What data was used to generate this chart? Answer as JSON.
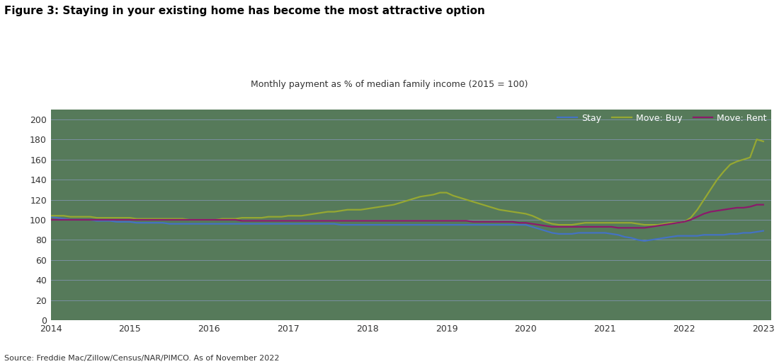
{
  "title": "Figure 3: Staying in your existing home has become the most attractive option",
  "subtitle": "Monthly payment as % of median family income (2015 = 100)",
  "source": "Source: Freddie Mac/Zillow/Census/NAR/PIMCO. As of November 2022",
  "legend_labels": [
    "Stay",
    "Move: Buy",
    "Move: Rent"
  ],
  "line_colors": [
    "#4472c4",
    "#96a832",
    "#8b1a6b"
  ],
  "figure_bg_color": "#ffffff",
  "plot_bg_color": "#567a5a",
  "grid_color": "#7a8fa0",
  "title_color": "#000000",
  "subtitle_color": "#333333",
  "tick_color": "#333333",
  "source_color": "#333333",
  "legend_text_color": "#ffffff",
  "ylim": [
    0,
    210
  ],
  "yticks": [
    0,
    20,
    40,
    60,
    80,
    100,
    120,
    140,
    160,
    180,
    200
  ],
  "xticks": [
    2014,
    2015,
    2016,
    2017,
    2018,
    2019,
    2020,
    2021,
    2022,
    2023
  ],
  "xmin": 2014.0,
  "xmax": 2023.1,
  "dates": [
    2014.0,
    2014.083,
    2014.167,
    2014.25,
    2014.333,
    2014.417,
    2014.5,
    2014.583,
    2014.667,
    2014.75,
    2014.833,
    2014.917,
    2015.0,
    2015.083,
    2015.167,
    2015.25,
    2015.333,
    2015.417,
    2015.5,
    2015.583,
    2015.667,
    2015.75,
    2015.833,
    2015.917,
    2016.0,
    2016.083,
    2016.167,
    2016.25,
    2016.333,
    2016.417,
    2016.5,
    2016.583,
    2016.667,
    2016.75,
    2016.833,
    2016.917,
    2017.0,
    2017.083,
    2017.167,
    2017.25,
    2017.333,
    2017.417,
    2017.5,
    2017.583,
    2017.667,
    2017.75,
    2017.833,
    2017.917,
    2018.0,
    2018.083,
    2018.167,
    2018.25,
    2018.333,
    2018.417,
    2018.5,
    2018.583,
    2018.667,
    2018.75,
    2018.833,
    2018.917,
    2019.0,
    2019.083,
    2019.167,
    2019.25,
    2019.333,
    2019.417,
    2019.5,
    2019.583,
    2019.667,
    2019.75,
    2019.833,
    2019.917,
    2020.0,
    2020.083,
    2020.167,
    2020.25,
    2020.333,
    2020.417,
    2020.5,
    2020.583,
    2020.667,
    2020.75,
    2020.833,
    2020.917,
    2021.0,
    2021.083,
    2021.167,
    2021.25,
    2021.333,
    2021.417,
    2021.5,
    2021.583,
    2021.667,
    2021.75,
    2021.833,
    2021.917,
    2022.0,
    2022.083,
    2022.167,
    2022.25,
    2022.333,
    2022.417,
    2022.5,
    2022.583,
    2022.667,
    2022.75,
    2022.833,
    2022.917,
    2023.0
  ],
  "stay": [
    103,
    102,
    101,
    100,
    100,
    100,
    100,
    99,
    99,
    99,
    98,
    98,
    98,
    97,
    97,
    97,
    97,
    97,
    96,
    96,
    96,
    96,
    96,
    96,
    96,
    96,
    96,
    96,
    96,
    96,
    96,
    96,
    96,
    96,
    96,
    96,
    96,
    96,
    96,
    96,
    96,
    96,
    96,
    96,
    95,
    95,
    95,
    95,
    95,
    95,
    95,
    95,
    95,
    95,
    95,
    95,
    95,
    95,
    95,
    95,
    95,
    95,
    95,
    95,
    95,
    95,
    95,
    95,
    95,
    95,
    95,
    95,
    95,
    93,
    91,
    89,
    87,
    86,
    86,
    86,
    87,
    87,
    87,
    87,
    87,
    86,
    85,
    83,
    82,
    80,
    79,
    80,
    81,
    82,
    83,
    84,
    84,
    84,
    84,
    85,
    85,
    85,
    85,
    86,
    86,
    87,
    87,
    88,
    89
  ],
  "move_buy": [
    104,
    104,
    104,
    103,
    103,
    103,
    103,
    102,
    102,
    102,
    102,
    102,
    102,
    101,
    101,
    101,
    101,
    101,
    101,
    101,
    101,
    100,
    100,
    100,
    100,
    100,
    101,
    101,
    101,
    102,
    102,
    102,
    102,
    103,
    103,
    103,
    104,
    104,
    104,
    105,
    106,
    107,
    108,
    108,
    109,
    110,
    110,
    110,
    111,
    112,
    113,
    114,
    115,
    117,
    119,
    121,
    123,
    124,
    125,
    127,
    127,
    124,
    122,
    120,
    118,
    116,
    114,
    112,
    110,
    109,
    108,
    107,
    106,
    104,
    101,
    98,
    96,
    95,
    95,
    95,
    96,
    97,
    97,
    97,
    97,
    97,
    97,
    97,
    97,
    96,
    95,
    95,
    95,
    96,
    97,
    97,
    98,
    102,
    110,
    120,
    130,
    140,
    148,
    155,
    158,
    160,
    162,
    180,
    178
  ],
  "move_rent": [
    100,
    100,
    100,
    100,
    100,
    100,
    100,
    100,
    100,
    100,
    100,
    100,
    100,
    100,
    100,
    100,
    100,
    100,
    100,
    100,
    100,
    100,
    100,
    100,
    100,
    100,
    100,
    100,
    100,
    99,
    99,
    99,
    99,
    99,
    99,
    99,
    99,
    99,
    99,
    99,
    99,
    99,
    99,
    99,
    99,
    99,
    99,
    99,
    99,
    99,
    99,
    99,
    99,
    99,
    99,
    99,
    99,
    99,
    99,
    99,
    99,
    99,
    99,
    99,
    98,
    98,
    98,
    98,
    98,
    98,
    98,
    97,
    97,
    96,
    95,
    94,
    93,
    93,
    93,
    93,
    93,
    93,
    93,
    93,
    93,
    93,
    92,
    92,
    92,
    92,
    92,
    93,
    94,
    95,
    96,
    97,
    98,
    100,
    103,
    106,
    108,
    109,
    110,
    111,
    112,
    112,
    113,
    115,
    115
  ]
}
